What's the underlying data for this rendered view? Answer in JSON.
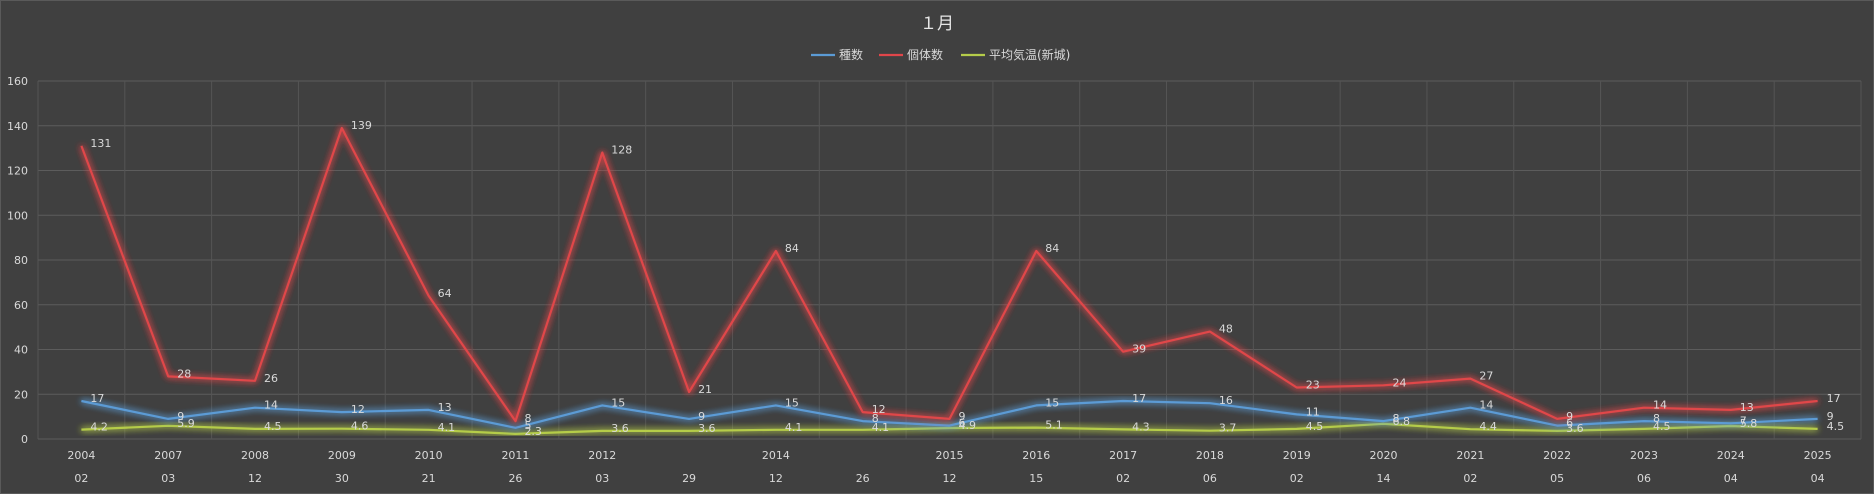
{
  "chart_data": {
    "type": "line",
    "title": "１月",
    "legend_position": "top",
    "grid": true,
    "ylim": [
      0,
      160
    ],
    "yticks": [
      0,
      20,
      40,
      60,
      80,
      100,
      120,
      140,
      160
    ],
    "x_years": [
      "2004",
      "2007",
      "2008",
      "2009",
      "2010",
      "2011",
      "2012",
      "",
      "2014",
      "",
      "2015",
      "2016",
      "2017",
      "2018",
      "2019",
      "2020",
      "2021",
      "2022",
      "2023",
      "2024",
      "2025"
    ],
    "x_days": [
      "02",
      "03",
      "12",
      "30",
      "21",
      "26",
      "03",
      "29",
      "12",
      "26",
      "12",
      "15",
      "02",
      "06",
      "02",
      "14",
      "02",
      "05",
      "06",
      "04",
      "04"
    ],
    "series": [
      {
        "name": "種数",
        "color": "#5b9bd5",
        "values": [
          17,
          9,
          14,
          12,
          13,
          5,
          15,
          9,
          15,
          8,
          6,
          15,
          17,
          16,
          11,
          8,
          14,
          6,
          8,
          7,
          9
        ],
        "labels": [
          "17",
          "9",
          "14",
          "12",
          "13",
          "5",
          "15",
          "9",
          "15",
          "8",
          "6",
          "15",
          "17",
          "16",
          "11",
          "8",
          "14",
          "6",
          "8",
          "7",
          "9"
        ]
      },
      {
        "name": "個体数",
        "color": "#e0464a",
        "values": [
          131,
          28,
          26,
          139,
          64,
          8,
          128,
          21,
          84,
          12,
          9,
          84,
          39,
          48,
          23,
          24,
          27,
          9,
          14,
          13,
          17
        ],
        "labels": [
          "131",
          "28",
          "26",
          "139",
          "64",
          "8",
          "128",
          "21",
          "84",
          "12",
          "9",
          "84",
          "39",
          "48",
          "23",
          "24",
          "27",
          "9",
          "14",
          "13",
          "17"
        ]
      },
      {
        "name": "平均気温(新城)",
        "color": "#b5cc4a",
        "values": [
          4.2,
          5.9,
          4.5,
          4.6,
          4.1,
          2.3,
          3.6,
          3.6,
          4.1,
          4.1,
          4.9,
          5.1,
          4.3,
          3.7,
          4.5,
          6.8,
          4.4,
          3.6,
          4.5,
          5.8,
          4.5
        ],
        "labels": [
          "4.2",
          "5.9",
          "4.5",
          "4.6",
          "4.1",
          "2.3",
          "3.6",
          "3.6",
          "4.1",
          "4.1",
          "4.9",
          "5.1",
          "4.3",
          "3.7",
          "4.5",
          "6.8",
          "4.4",
          "3.6",
          "4.5",
          "5.8",
          "4.5"
        ]
      }
    ]
  }
}
